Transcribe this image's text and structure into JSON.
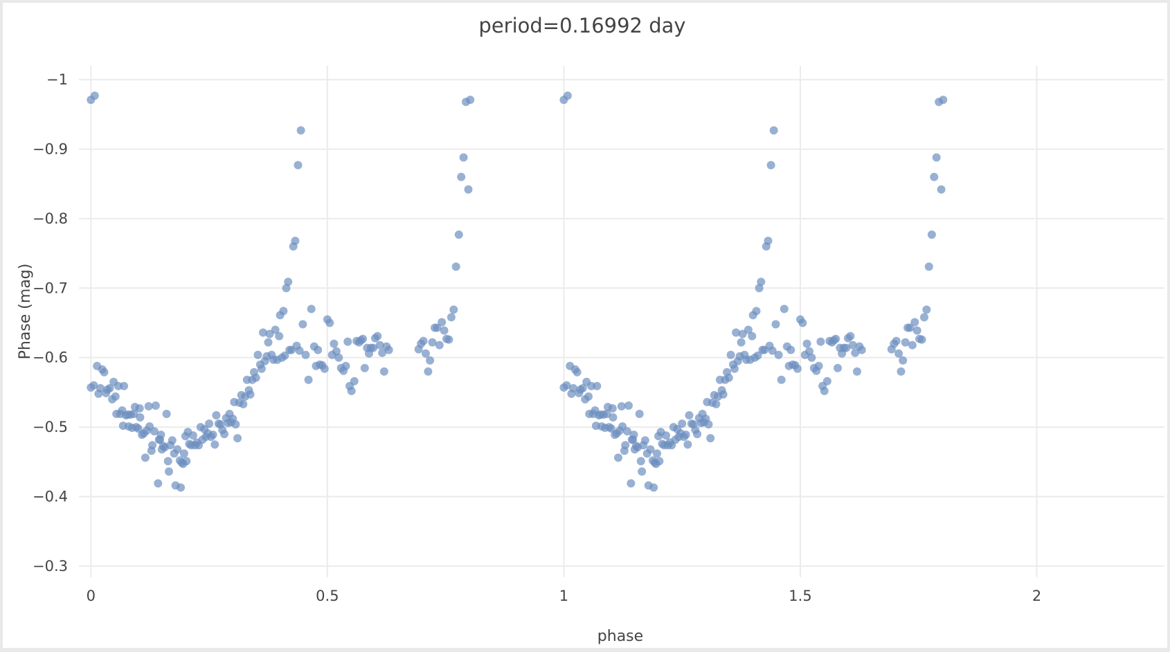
{
  "chart_data": {
    "type": "scatter",
    "title": "period=0.16992 day",
    "xlabel": "phase",
    "ylabel": "Phase (mag)",
    "xlim": [
      -0.04,
      2.27
    ],
    "ylim": [
      -0.27,
      -1.02
    ],
    "y_reversed": true,
    "grid": true,
    "xticks": [
      0,
      0.5,
      1,
      1.5,
      2
    ],
    "xtick_labels": [
      "0",
      "0.5",
      "1",
      "1.5",
      "2"
    ],
    "yticks": [
      -1,
      -0.9,
      -0.8,
      -0.7,
      -0.6,
      -0.5,
      -0.4,
      -0.3
    ],
    "ytick_labels": [
      "−1",
      "−0.9",
      "−0.8",
      "−0.7",
      "−0.6",
      "−0.5",
      "−0.4",
      "−0.3"
    ],
    "marker_color": "#6c8ebf",
    "marker_opacity": 0.7,
    "base_points": [
      [
        0.0,
        -0.971
      ],
      [
        0.008,
        -0.977
      ],
      [
        0.0,
        -0.557
      ],
      [
        0.006,
        -0.56
      ],
      [
        0.013,
        -0.588
      ],
      [
        0.016,
        -0.548
      ],
      [
        0.02,
        -0.556
      ],
      [
        0.024,
        -0.583
      ],
      [
        0.028,
        -0.579
      ],
      [
        0.032,
        -0.549
      ],
      [
        0.035,
        -0.554
      ],
      [
        0.04,
        -0.556
      ],
      [
        0.045,
        -0.54
      ],
      [
        0.048,
        -0.565
      ],
      [
        0.052,
        -0.544
      ],
      [
        0.054,
        -0.519
      ],
      [
        0.058,
        -0.559
      ],
      [
        0.062,
        -0.519
      ],
      [
        0.066,
        -0.524
      ],
      [
        0.068,
        -0.502
      ],
      [
        0.07,
        -0.559
      ],
      [
        0.074,
        -0.517
      ],
      [
        0.078,
        -0.518
      ],
      [
        0.08,
        -0.501
      ],
      [
        0.084,
        -0.518
      ],
      [
        0.087,
        -0.499
      ],
      [
        0.091,
        -0.519
      ],
      [
        0.093,
        -0.529
      ],
      [
        0.096,
        -0.5
      ],
      [
        0.1,
        -0.498
      ],
      [
        0.103,
        -0.527
      ],
      [
        0.104,
        -0.514
      ],
      [
        0.108,
        -0.489
      ],
      [
        0.112,
        -0.491
      ],
      [
        0.115,
        -0.456
      ],
      [
        0.118,
        -0.495
      ],
      [
        0.122,
        -0.53
      ],
      [
        0.124,
        -0.501
      ],
      [
        0.128,
        -0.466
      ],
      [
        0.13,
        -0.474
      ],
      [
        0.134,
        -0.494
      ],
      [
        0.137,
        -0.531
      ],
      [
        0.142,
        -0.419
      ],
      [
        0.144,
        -0.482
      ],
      [
        0.146,
        -0.482
      ],
      [
        0.148,
        -0.489
      ],
      [
        0.15,
        -0.468
      ],
      [
        0.153,
        -0.473
      ],
      [
        0.156,
        -0.471
      ],
      [
        0.16,
        -0.519
      ],
      [
        0.163,
        -0.451
      ],
      [
        0.165,
        -0.436
      ],
      [
        0.168,
        -0.474
      ],
      [
        0.172,
        -0.481
      ],
      [
        0.176,
        -0.462
      ],
      [
        0.179,
        -0.416
      ],
      [
        0.183,
        -0.468
      ],
      [
        0.188,
        -0.452
      ],
      [
        0.19,
        -0.413
      ],
      [
        0.192,
        -0.449
      ],
      [
        0.195,
        -0.447
      ],
      [
        0.197,
        -0.462
      ],
      [
        0.2,
        -0.487
      ],
      [
        0.202,
        -0.451
      ],
      [
        0.205,
        -0.493
      ],
      [
        0.208,
        -0.476
      ],
      [
        0.212,
        -0.474
      ],
      [
        0.216,
        -0.488
      ],
      [
        0.22,
        -0.474
      ],
      [
        0.224,
        -0.478
      ],
      [
        0.228,
        -0.474
      ],
      [
        0.232,
        -0.5
      ],
      [
        0.236,
        -0.482
      ],
      [
        0.24,
        -0.497
      ],
      [
        0.243,
        -0.486
      ],
      [
        0.247,
        -0.491
      ],
      [
        0.25,
        -0.505
      ],
      [
        0.254,
        -0.486
      ],
      [
        0.258,
        -0.489
      ],
      [
        0.262,
        -0.475
      ],
      [
        0.265,
        -0.517
      ],
      [
        0.27,
        -0.505
      ],
      [
        0.274,
        -0.504
      ],
      [
        0.278,
        -0.496
      ],
      [
        0.282,
        -0.49
      ],
      [
        0.286,
        -0.513
      ],
      [
        0.29,
        -0.506
      ],
      [
        0.293,
        -0.519
      ],
      [
        0.296,
        -0.507
      ],
      [
        0.3,
        -0.512
      ],
      [
        0.303,
        -0.536
      ],
      [
        0.306,
        -0.504
      ],
      [
        0.31,
        -0.484
      ],
      [
        0.314,
        -0.535
      ],
      [
        0.318,
        -0.546
      ],
      [
        0.322,
        -0.533
      ],
      [
        0.326,
        -0.544
      ],
      [
        0.33,
        -0.568
      ],
      [
        0.334,
        -0.553
      ],
      [
        0.337,
        -0.547
      ],
      [
        0.341,
        -0.568
      ],
      [
        0.345,
        -0.579
      ],
      [
        0.349,
        -0.571
      ],
      [
        0.353,
        -0.604
      ],
      [
        0.358,
        -0.59
      ],
      [
        0.361,
        -0.584
      ],
      [
        0.364,
        -0.636
      ],
      [
        0.368,
        -0.595
      ],
      [
        0.372,
        -0.602
      ],
      [
        0.375,
        -0.622
      ],
      [
        0.378,
        -0.634
      ],
      [
        0.382,
        -0.604
      ],
      [
        0.386,
        -0.597
      ],
      [
        0.39,
        -0.64
      ],
      [
        0.394,
        -0.597
      ],
      [
        0.398,
        -0.631
      ],
      [
        0.4,
        -0.661
      ],
      [
        0.404,
        -0.6
      ],
      [
        0.407,
        -0.667
      ],
      [
        0.41,
        -0.603
      ],
      [
        0.413,
        -0.7
      ],
      [
        0.417,
        -0.709
      ],
      [
        0.42,
        -0.611
      ],
      [
        0.424,
        -0.611
      ],
      [
        0.428,
        -0.76
      ],
      [
        0.432,
        -0.768
      ],
      [
        0.435,
        -0.617
      ],
      [
        0.438,
        -0.877
      ],
      [
        0.441,
        -0.61
      ],
      [
        0.444,
        -0.927
      ],
      [
        0.448,
        -0.648
      ],
      [
        0.454,
        -0.604
      ],
      [
        0.46,
        -0.568
      ],
      [
        0.466,
        -0.67
      ],
      [
        0.472,
        -0.616
      ],
      [
        0.476,
        -0.588
      ],
      [
        0.48,
        -0.611
      ],
      [
        0.484,
        -0.59
      ],
      [
        0.489,
        -0.589
      ],
      [
        0.494,
        -0.584
      ],
      [
        0.5,
        -0.655
      ],
      [
        0.505,
        -0.65
      ],
      [
        0.51,
        -0.604
      ],
      [
        0.514,
        -0.62
      ],
      [
        0.519,
        -0.609
      ],
      [
        0.524,
        -0.6
      ],
      [
        0.529,
        -0.585
      ],
      [
        0.534,
        -0.581
      ],
      [
        0.539,
        -0.588
      ],
      [
        0.543,
        -0.623
      ],
      [
        0.547,
        -0.559
      ],
      [
        0.551,
        -0.552
      ],
      [
        0.557,
        -0.566
      ],
      [
        0.562,
        -0.624
      ],
      [
        0.567,
        -0.622
      ],
      [
        0.571,
        -0.625
      ],
      [
        0.575,
        -0.627
      ],
      [
        0.579,
        -0.585
      ],
      [
        0.584,
        -0.614
      ],
      [
        0.588,
        -0.606
      ],
      [
        0.592,
        -0.614
      ],
      [
        0.597,
        -0.614
      ],
      [
        0.601,
        -0.628
      ],
      [
        0.606,
        -0.631
      ],
      [
        0.611,
        -0.618
      ],
      [
        0.616,
        -0.607
      ],
      [
        0.62,
        -0.58
      ],
      [
        0.625,
        -0.616
      ],
      [
        0.63,
        -0.611
      ],
      [
        0.693,
        -0.612
      ],
      [
        0.698,
        -0.62
      ],
      [
        0.703,
        -0.624
      ],
      [
        0.708,
        -0.606
      ],
      [
        0.713,
        -0.58
      ],
      [
        0.717,
        -0.596
      ],
      [
        0.722,
        -0.622
      ],
      [
        0.727,
        -0.643
      ],
      [
        0.732,
        -0.643
      ],
      [
        0.737,
        -0.618
      ],
      [
        0.742,
        -0.651
      ],
      [
        0.747,
        -0.639
      ],
      [
        0.752,
        -0.627
      ],
      [
        0.757,
        -0.626
      ],
      [
        0.762,
        -0.658
      ],
      [
        0.767,
        -0.669
      ],
      [
        0.772,
        -0.731
      ],
      [
        0.778,
        -0.777
      ],
      [
        0.783,
        -0.86
      ],
      [
        0.788,
        -0.888
      ],
      [
        0.793,
        -0.968
      ],
      [
        0.798,
        -0.842
      ],
      [
        0.802,
        -0.971
      ]
    ]
  }
}
